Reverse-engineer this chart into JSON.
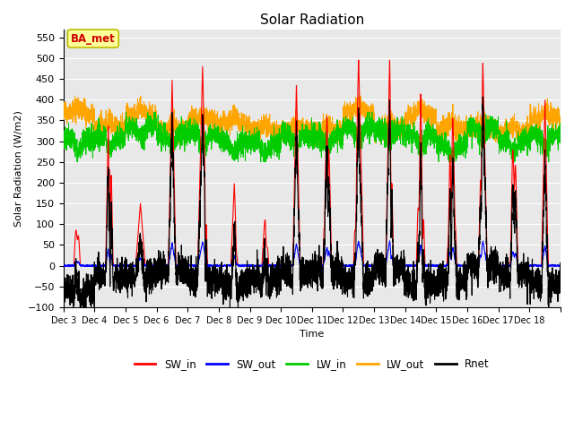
{
  "title": "Solar Radiation",
  "ylabel": "Solar Radiation (W/m2)",
  "xlabel": "Time",
  "ylim": [
    -100,
    570
  ],
  "yticks": [
    -100,
    -50,
    0,
    50,
    100,
    150,
    200,
    250,
    300,
    350,
    400,
    450,
    500,
    550
  ],
  "xtick_labels": [
    "Dec 3",
    "Dec 4",
    "Dec 5",
    "Dec 6",
    "Dec 7",
    "Dec 8",
    "Dec 9",
    "Dec 10",
    "Dec 11",
    "Dec 12",
    "Dec 13",
    "Dec 14",
    "Dec 15",
    "Dec 16",
    "Dec 17",
    "Dec 18"
  ],
  "colors": {
    "SW_in": "#ff0000",
    "SW_out": "#0000ff",
    "LW_in": "#00cc00",
    "LW_out": "#ffa500",
    "Rnet": "#000000"
  },
  "annotation_text": "BA_met",
  "annotation_color": "#cc0000",
  "annotation_bg": "#ffff99",
  "n_days": 16,
  "points_per_day": 288,
  "background_color": "#e8e8e8"
}
